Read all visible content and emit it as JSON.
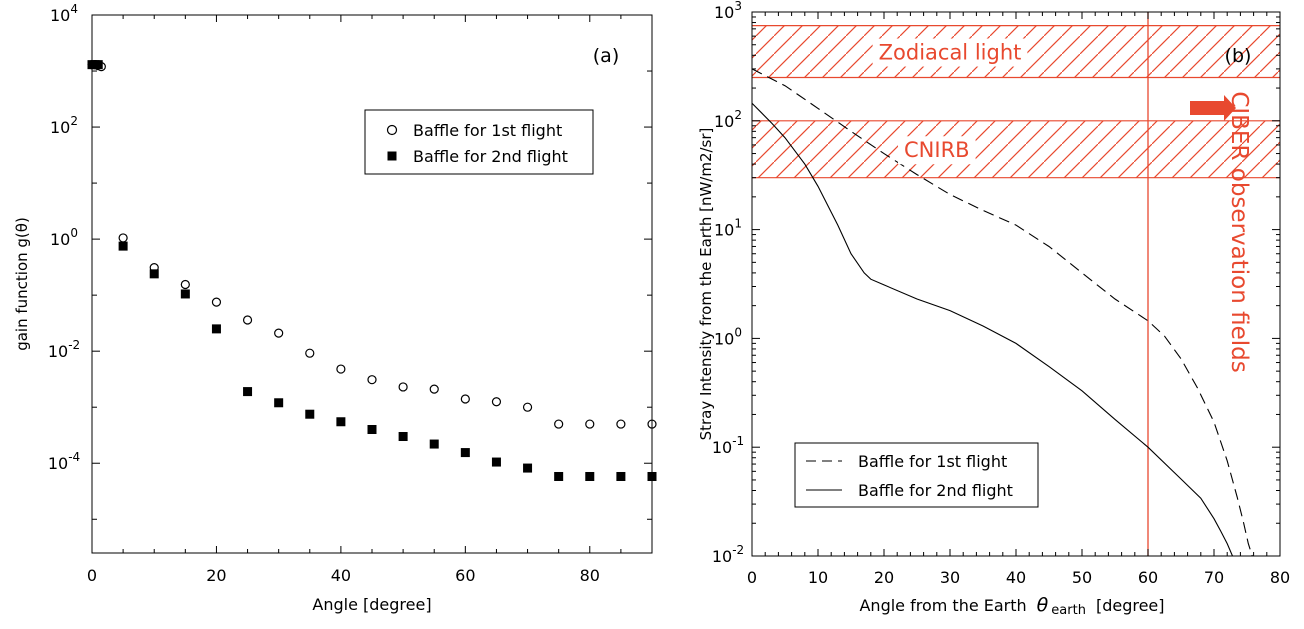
{
  "chart_data": [
    {
      "type": "scatter",
      "panel_label": "(a)",
      "xlabel": "Angle [degree]",
      "ylabel": "gain function  g(θ)",
      "xlim": [
        0,
        90
      ],
      "ylim": [
        2.5e-06,
        10000
      ],
      "yscale": "log",
      "x_ticks": [
        0,
        20,
        40,
        60,
        80
      ],
      "y_ticks": [
        {
          "value": 0.0001,
          "base": "10",
          "exp": "-4"
        },
        {
          "value": 0.01,
          "base": "10",
          "exp": "-2"
        },
        {
          "value": 1,
          "base": "10",
          "exp": "0"
        },
        {
          "value": 100,
          "base": "10",
          "exp": "2"
        },
        {
          "value": 10000,
          "base": "10",
          "exp": "4"
        }
      ],
      "legend_position": "upper-right",
      "series": [
        {
          "name": "Baffle for 1st flight",
          "marker": "open-circle",
          "x": [
            0,
            0.5,
            1,
            1.5,
            5,
            10,
            15,
            20,
            25,
            30,
            35,
            40,
            45,
            50,
            55,
            60,
            65,
            70,
            75,
            80,
            85,
            90
          ],
          "y": [
            1300,
            1300,
            1250,
            1200,
            1.05,
            0.31,
            0.155,
            0.075,
            0.036,
            0.021,
            0.0092,
            0.0048,
            0.0031,
            0.0023,
            0.0021,
            0.0014,
            0.00125,
            0.001,
            0.0005,
            0.0005,
            0.0005,
            0.0005
          ]
        },
        {
          "name": "Baffle for 2nd flight",
          "marker": "filled-square",
          "x": [
            0,
            0.5,
            1,
            5,
            10,
            15,
            20,
            25,
            30,
            35,
            40,
            45,
            50,
            55,
            60,
            65,
            70,
            75,
            80,
            85,
            90
          ],
          "y": [
            1300,
            1300,
            1300,
            0.75,
            0.24,
            0.105,
            0.025,
            0.0019,
            0.0012,
            0.00075,
            0.00055,
            0.0004,
            0.0003,
            0.00022,
            0.000155,
            0.000105,
            8.2e-05,
            5.8e-05,
            5.8e-05,
            5.8e-05,
            5.8e-05
          ]
        }
      ]
    },
    {
      "type": "line",
      "panel_label": "(b)",
      "xlabel": "Angle from the Earth  θ earth  [degree]",
      "xlabel_parts": {
        "prefix": "Angle from the Earth",
        "theta": "θ",
        "sub": "earth",
        "suffix": "[degree]"
      },
      "ylabel": "Stray Intensity from the Earth [nW/m2/sr]",
      "xlim": [
        0,
        80
      ],
      "ylim": [
        0.01,
        1000
      ],
      "yscale": "log",
      "x_ticks": [
        0,
        10,
        20,
        30,
        40,
        50,
        60,
        70,
        80
      ],
      "y_ticks": [
        {
          "value": 0.01,
          "base": "10",
          "exp": "-2"
        },
        {
          "value": 0.1,
          "base": "10",
          "exp": "-1"
        },
        {
          "value": 1,
          "base": "10",
          "exp": "0"
        },
        {
          "value": 10,
          "base": "10",
          "exp": "1"
        },
        {
          "value": 100,
          "base": "10",
          "exp": "2"
        },
        {
          "value": 1000,
          "base": "10",
          "exp": "3"
        }
      ],
      "legend_position": "lower-left",
      "bands": [
        {
          "label": "Zodiacal light",
          "y_range": [
            250,
            750
          ],
          "color": "#e8492f"
        },
        {
          "label": "CNIRB",
          "y_range": [
            30,
            100
          ],
          "color": "#e8492f"
        }
      ],
      "vertical_marker": {
        "x": 60,
        "label": "CIBER observation fields",
        "color": "#e8492f"
      },
      "series": [
        {
          "name": "Baffle for 1st flight",
          "style": "dashed",
          "x": [
            0,
            5,
            10,
            15,
            20,
            25,
            30,
            35,
            40,
            45,
            50,
            55,
            60,
            62.5,
            65,
            67.5,
            70,
            72,
            73.5,
            74.5,
            75.2,
            75.8
          ],
          "y": [
            300,
            210,
            130,
            80,
            50,
            32,
            21,
            15,
            11,
            7,
            4,
            2.3,
            1.45,
            1.05,
            0.65,
            0.35,
            0.17,
            0.075,
            0.035,
            0.02,
            0.013,
            0.01
          ]
        },
        {
          "name": "Baffle for 2nd flight",
          "style": "solid",
          "x": [
            0,
            3,
            5,
            8,
            10,
            13,
            15,
            17,
            18,
            20,
            25,
            30,
            35,
            40,
            45,
            50,
            55,
            60,
            65,
            68,
            70,
            71,
            72,
            72.8
          ],
          "y": [
            145,
            95,
            70,
            40,
            25,
            11,
            6,
            4,
            3.5,
            3.1,
            2.3,
            1.8,
            1.3,
            0.9,
            0.55,
            0.33,
            0.18,
            0.1,
            0.051,
            0.034,
            0.022,
            0.017,
            0.013,
            0.01
          ]
        }
      ]
    }
  ]
}
